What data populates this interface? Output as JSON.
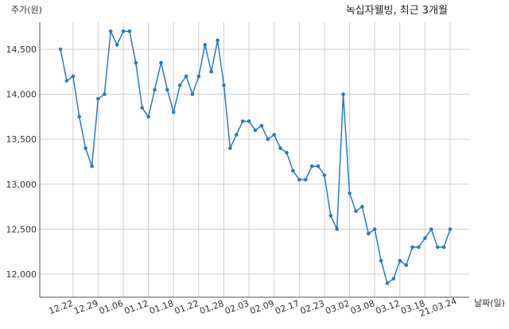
{
  "chart_data": {
    "type": "line",
    "title": "녹십자웰빙, 최근 3개월",
    "xlabel": "날짜(일)",
    "ylabel": "주가(원)",
    "ylim": [
      11750,
      14800
    ],
    "yticks": [
      "12,000",
      "12,500",
      "13,000",
      "13,500",
      "14,000",
      "14,500"
    ],
    "ytick_values": [
      12000,
      12500,
      13000,
      13500,
      14000,
      14500
    ],
    "xticks": [
      "12.22",
      "12.29",
      "01.06",
      "01.12",
      "01.18",
      "01.22",
      "01.28",
      "02.03",
      "02.09",
      "02.17",
      "02.23",
      "03.02",
      "03.08",
      "03.12",
      "03.18",
      "21.03.24"
    ],
    "xtick_index": [
      2,
      6,
      10,
      14,
      18,
      22,
      26,
      30,
      34,
      38,
      42,
      46,
      50,
      54,
      58,
      62
    ],
    "grid": true,
    "series": [
      {
        "color": "#2b7bb9",
        "values": [
          14500,
          14150,
          14200,
          13750,
          13400,
          13200,
          13950,
          14000,
          14700,
          14550,
          14700,
          14700,
          14350,
          13850,
          13750,
          14050,
          14350,
          14050,
          13800,
          14100,
          14200,
          14000,
          14200,
          14550,
          14250,
          14600,
          14100,
          13400,
          13550,
          13700,
          13700,
          13600,
          13650,
          13500,
          13550,
          13400,
          13350,
          13150,
          13050,
          13050,
          13200,
          13200,
          13100,
          12650,
          12500,
          14000,
          12900,
          12700,
          12750,
          12450,
          12500,
          12150,
          11900,
          11950,
          12150,
          12100,
          12300,
          12300,
          12400,
          12500,
          12300,
          12300,
          12500
        ]
      }
    ]
  }
}
